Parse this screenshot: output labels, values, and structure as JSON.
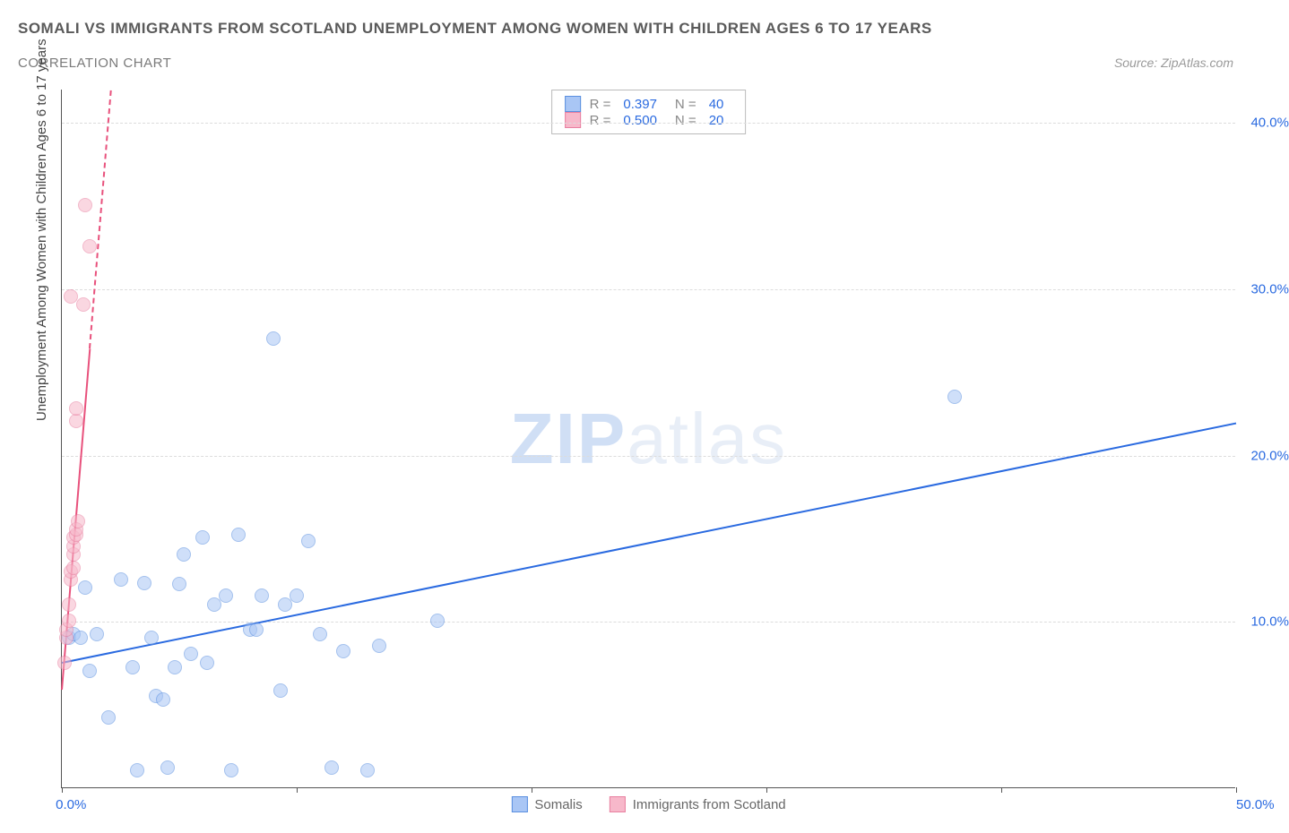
{
  "title_main": "SOMALI VS IMMIGRANTS FROM SCOTLAND UNEMPLOYMENT AMONG WOMEN WITH CHILDREN AGES 6 TO 17 YEARS",
  "title_sub": "CORRELATION CHART",
  "source": "Source: ZipAtlas.com",
  "y_axis_label": "Unemployment Among Women with Children Ages 6 to 17 years",
  "watermark_bold": "ZIP",
  "watermark_rest": "atlas",
  "chart": {
    "type": "scatter",
    "xlim": [
      0,
      50
    ],
    "ylim": [
      0,
      42
    ],
    "x_ticks": [
      0,
      10,
      20,
      30,
      40,
      50
    ],
    "x_tick_labels_shown": {
      "0": "0.0%",
      "50": "50.0%"
    },
    "y_ticks": [
      10,
      20,
      30,
      40
    ],
    "y_tick_labels": {
      "10": "10.0%",
      "20": "20.0%",
      "30": "30.0%",
      "40": "40.0%"
    },
    "grid_color": "#dcdcdc",
    "background": "#ffffff",
    "point_radius": 8,
    "point_opacity": 0.55,
    "series": [
      {
        "name": "Somalis",
        "color_fill": "#a9c6f5",
        "color_stroke": "#5a8fe0",
        "R": "0.397",
        "N": "40",
        "trend": {
          "x1": 0,
          "y1": 7.6,
          "x2": 50,
          "y2": 22.0,
          "color": "#2a6ae0",
          "width": 2
        },
        "points": [
          [
            0.3,
            9.0
          ],
          [
            0.5,
            9.2
          ],
          [
            0.8,
            9.0
          ],
          [
            1.0,
            12.0
          ],
          [
            1.2,
            7.0
          ],
          [
            1.5,
            9.2
          ],
          [
            2.0,
            4.2
          ],
          [
            2.5,
            12.5
          ],
          [
            3.0,
            7.2
          ],
          [
            3.2,
            1.0
          ],
          [
            3.5,
            12.3
          ],
          [
            4.0,
            5.5
          ],
          [
            4.3,
            5.3
          ],
          [
            4.5,
            1.2
          ],
          [
            5.0,
            12.2
          ],
          [
            5.2,
            14.0
          ],
          [
            5.5,
            8.0
          ],
          [
            6.0,
            15.0
          ],
          [
            6.5,
            11.0
          ],
          [
            7.0,
            11.5
          ],
          [
            7.2,
            1.0
          ],
          [
            7.5,
            15.2
          ],
          [
            8.0,
            9.5
          ],
          [
            8.3,
            9.5
          ],
          [
            8.5,
            11.5
          ],
          [
            9.0,
            27.0
          ],
          [
            9.3,
            5.8
          ],
          [
            9.5,
            11.0
          ],
          [
            10.0,
            11.5
          ],
          [
            10.5,
            14.8
          ],
          [
            11.0,
            9.2
          ],
          [
            11.5,
            1.2
          ],
          [
            12.0,
            8.2
          ],
          [
            13.0,
            1.0
          ],
          [
            13.5,
            8.5
          ],
          [
            16.0,
            10.0
          ],
          [
            38.0,
            23.5
          ],
          [
            4.8,
            7.2
          ],
          [
            6.2,
            7.5
          ],
          [
            3.8,
            9.0
          ]
        ]
      },
      {
        "name": "Immigrants from Scotland",
        "color_fill": "#f7b8ca",
        "color_stroke": "#e87fa0",
        "R": "0.500",
        "N": "20",
        "trend": {
          "x1": 0,
          "y1": 6.0,
          "x2": 2.1,
          "y2": 42.0,
          "color": "#e8517c",
          "width": 2,
          "dash_after": 26.5
        },
        "points": [
          [
            0.1,
            7.5
          ],
          [
            0.2,
            9.0
          ],
          [
            0.2,
            9.5
          ],
          [
            0.3,
            10.0
          ],
          [
            0.3,
            11.0
          ],
          [
            0.4,
            12.5
          ],
          [
            0.4,
            13.0
          ],
          [
            0.5,
            13.2
          ],
          [
            0.5,
            14.0
          ],
          [
            0.5,
            14.5
          ],
          [
            0.5,
            15.0
          ],
          [
            0.6,
            15.2
          ],
          [
            0.6,
            15.5
          ],
          [
            0.7,
            16.0
          ],
          [
            0.6,
            22.0
          ],
          [
            0.6,
            22.8
          ],
          [
            0.9,
            29.0
          ],
          [
            0.4,
            29.5
          ],
          [
            1.2,
            32.5
          ],
          [
            1.0,
            35.0
          ]
        ]
      }
    ]
  },
  "bottom_legend": [
    {
      "label": "Somalis",
      "fill": "#a9c6f5",
      "stroke": "#5a8fe0"
    },
    {
      "label": "Immigrants from Scotland",
      "fill": "#f7b8ca",
      "stroke": "#e87fa0"
    }
  ]
}
